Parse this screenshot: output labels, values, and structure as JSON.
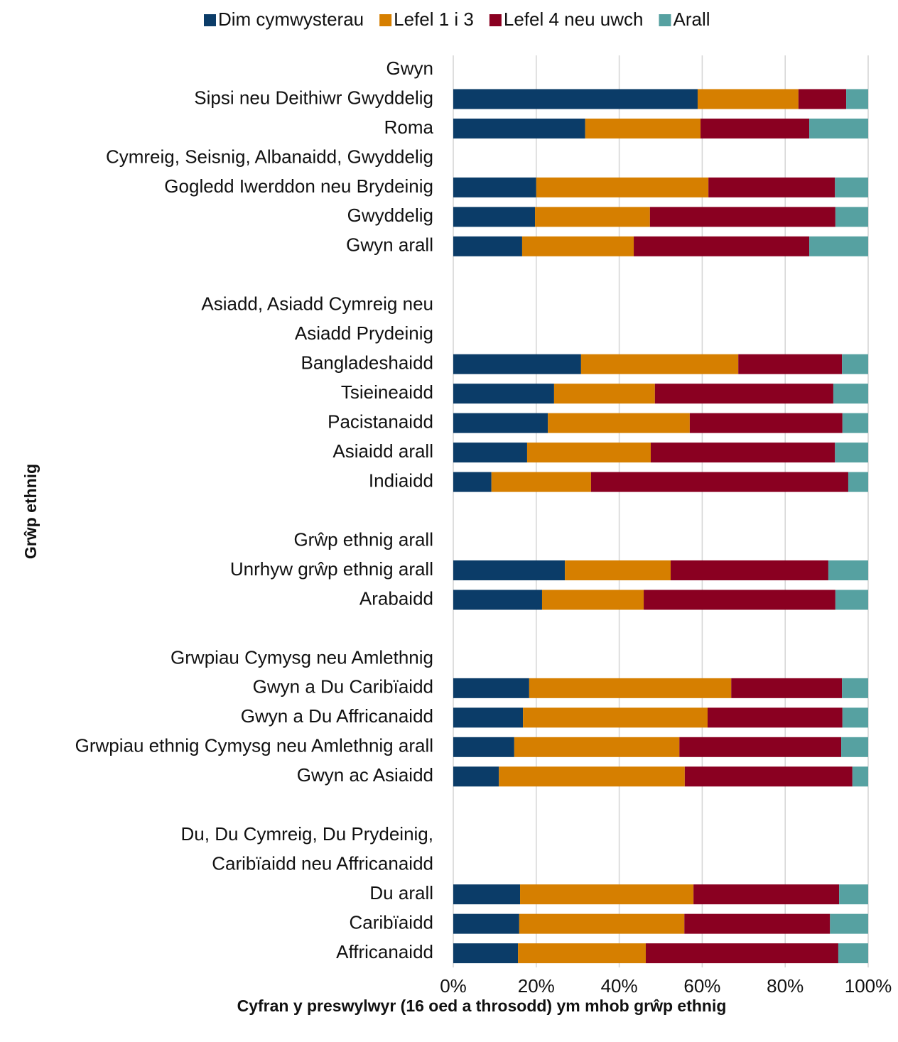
{
  "chart_data": {
    "type": "stacked_bar_horizontal",
    "legend": "top",
    "x_label": "Cyfran y preswylwyr (16 oed a throsodd) ym mhob grŵp ethnig",
    "y_label": "Grŵp ethnig",
    "xlim": [
      0,
      100
    ],
    "xticks": [
      {
        "value": 0,
        "label": "0%"
      },
      {
        "value": 20,
        "label": "20%"
      },
      {
        "value": 40,
        "label": "40%"
      },
      {
        "value": 60,
        "label": "60%"
      },
      {
        "value": 80,
        "label": "80%"
      },
      {
        "value": 100,
        "label": "100%"
      }
    ],
    "grid": true,
    "categories": [
      "Gwyn",
      "Sipsi neu Deithiwr Gwyddelig",
      "Roma",
      "Cymreig, Seisnig, Albanaidd, Gwyddelig",
      "Gogledd Iwerddon neu Brydeinig",
      "Gwyddelig",
      "Gwyn arall",
      null,
      "Asiadd, Asiadd Cymreig neu",
      "Asiadd Prydeinig",
      "Bangladeshaidd",
      "Tsieineaidd",
      "Pacistanaidd",
      "Asiaidd arall",
      "Indiaidd",
      null,
      "Grŵp ethnig arall",
      "Unrhyw grŵp ethnig arall",
      "Arabaidd",
      null,
      "Grwpiau Cymysg neu Amlethnig",
      "Gwyn a Du Caribïaidd",
      "Gwyn a Du Affricanaidd",
      "Grwpiau ethnig Cymysg neu Amlethnig arall",
      "Gwyn ac Asiaidd",
      null,
      "Du, Du Cymreig, Du Prydeinig,",
      "Caribïaidd neu Affricanaidd",
      "Du arall",
      "Caribïaidd",
      "Affricanaidd"
    ],
    "series": [
      {
        "name": "Dim cymwysterau",
        "color": "#0b3c68",
        "values": [
          null,
          58.9,
          31.8,
          null,
          20.0,
          19.7,
          16.6,
          null,
          null,
          null,
          30.8,
          24.3,
          22.8,
          17.8,
          9.2,
          null,
          null,
          26.9,
          21.4,
          null,
          null,
          18.3,
          16.8,
          14.7,
          11.0,
          null,
          null,
          null,
          16.1,
          15.9,
          15.6
        ]
      },
      {
        "name": "Lefel 1 i 3",
        "color": "#d67f00",
        "values": [
          null,
          24.3,
          27.8,
          null,
          41.5,
          27.7,
          26.9,
          null,
          null,
          null,
          37.9,
          24.3,
          34.2,
          29.8,
          24.0,
          null,
          null,
          25.5,
          24.5,
          null,
          null,
          48.7,
          44.5,
          39.8,
          44.8,
          null,
          null,
          null,
          41.8,
          39.8,
          30.8
        ]
      },
      {
        "name": "Lefel 4 neu uwch",
        "color": "#8a0021",
        "values": [
          null,
          11.5,
          26.2,
          null,
          30.5,
          44.7,
          42.3,
          null,
          null,
          null,
          25.0,
          43.0,
          36.8,
          44.4,
          62.0,
          null,
          null,
          38.0,
          46.2,
          null,
          null,
          26.7,
          32.5,
          39.0,
          40.4,
          null,
          null,
          null,
          35.1,
          35.1,
          46.4
        ]
      },
      {
        "name": "Arall",
        "color": "#56a1a1",
        "values": [
          null,
          5.3,
          14.2,
          null,
          8.0,
          7.9,
          14.2,
          null,
          null,
          null,
          6.3,
          8.4,
          6.2,
          8.0,
          4.8,
          null,
          null,
          9.6,
          7.9,
          null,
          null,
          6.3,
          6.2,
          6.5,
          3.8,
          null,
          null,
          null,
          7.0,
          9.2,
          7.2
        ]
      }
    ]
  }
}
